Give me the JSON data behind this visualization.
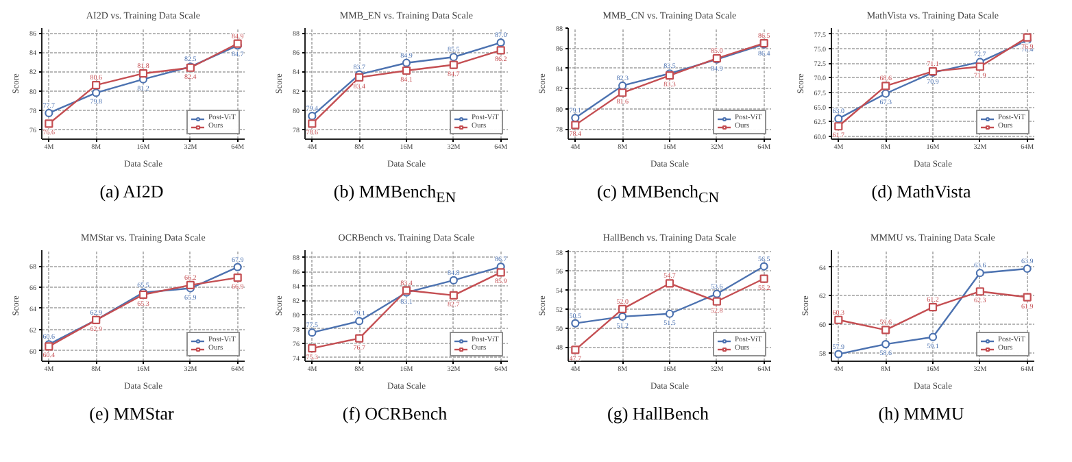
{
  "chart_data": [
    {
      "type": "line",
      "title": "AI2D vs. Training Data Scale",
      "xlabel": "Data Scale",
      "ylabel": "Score",
      "annotations": [
        "(a) AI2D"
      ],
      "categories": [
        "4M",
        "8M",
        "16M",
        "32M",
        "64M"
      ],
      "ylim": [
        75,
        86.5
      ],
      "yticks": [
        76,
        78,
        80,
        82,
        84,
        86
      ],
      "grid": true,
      "legend": "bottom right",
      "series": [
        {
          "name": "Post-ViT",
          "color": "#4c72b0",
          "marker": "circle",
          "values": [
            77.7,
            79.8,
            81.2,
            82.5,
            84.7
          ],
          "value_labels": [
            "77.7",
            "79.8",
            "81.2",
            "82.5",
            "84.7"
          ]
        },
        {
          "name": "Ours",
          "color": "#c44e52",
          "marker": "square",
          "values": [
            76.6,
            80.6,
            81.8,
            82.4,
            84.9
          ],
          "value_labels": [
            "76.6",
            "80.6",
            "81.8",
            "82.4",
            "84.9"
          ]
        }
      ]
    },
    {
      "type": "line",
      "title": "MMB_EN vs. Training Data Scale",
      "xlabel": "Data Scale",
      "ylabel": "Score",
      "annotations": [
        "(b) MMBench$_{EN}$"
      ],
      "categories": [
        "4M",
        "8M",
        "16M",
        "32M",
        "64M"
      ],
      "ylim": [
        77,
        88.5
      ],
      "yticks": [
        78,
        80,
        82,
        84,
        86,
        88
      ],
      "grid": true,
      "legend": "bottom right",
      "series": [
        {
          "name": "Post-ViT",
          "color": "#4c72b0",
          "marker": "circle",
          "values": [
            79.4,
            83.7,
            84.9,
            85.5,
            87.0
          ],
          "value_labels": [
            "79.4",
            "83.7",
            "84.9",
            "85.5",
            "87.0"
          ]
        },
        {
          "name": "Ours",
          "color": "#c44e52",
          "marker": "square",
          "values": [
            78.6,
            83.4,
            84.1,
            84.7,
            86.2
          ],
          "value_labels": [
            "78.6",
            "83.4",
            "84.1",
            "84.7",
            "86.2"
          ]
        }
      ]
    },
    {
      "type": "line",
      "title": "MMB_CN vs. Training Data Scale",
      "xlabel": "Data Scale",
      "ylabel": "Score",
      "annotations": [
        "(c) MMBench$_{CN}$"
      ],
      "categories": [
        "4M",
        "8M",
        "16M",
        "32M",
        "64M"
      ],
      "ylim": [
        77,
        88
      ],
      "yticks": [
        78,
        80,
        82,
        84,
        86,
        88
      ],
      "grid": true,
      "legend": "bottom right",
      "series": [
        {
          "name": "Post-ViT",
          "color": "#4c72b0",
          "marker": "circle",
          "values": [
            79.1,
            82.3,
            83.5,
            84.9,
            86.4
          ],
          "value_labels": [
            "79.1",
            "82.3",
            "83.5",
            "84.9",
            "86.4"
          ]
        },
        {
          "name": "Ours",
          "color": "#c44e52",
          "marker": "square",
          "values": [
            78.4,
            81.6,
            83.3,
            85.0,
            86.5
          ],
          "value_labels": [
            "78.4",
            "81.6",
            "83.3",
            "85.0",
            "86.5"
          ]
        }
      ]
    },
    {
      "type": "line",
      "title": "MathVista vs. Training Data Scale",
      "xlabel": "Data Scale",
      "ylabel": "Score",
      "annotations": [
        "(d) MathVista"
      ],
      "categories": [
        "4M",
        "8M",
        "16M",
        "32M",
        "64M"
      ],
      "ylim": [
        59.5,
        78.5
      ],
      "yticks": [
        {
          "value": 60,
          "label": "60.0"
        },
        62.5,
        {
          "value": 65,
          "label": "65.0"
        },
        67.5,
        {
          "value": 70,
          "label": "70.0"
        },
        72.5,
        {
          "value": 75,
          "label": "75.0"
        },
        77.5
      ],
      "grid": true,
      "legend": "bottom right",
      "series": [
        {
          "name": "Post-ViT",
          "color": "#4c72b0",
          "marker": "circle",
          "values": [
            63.0,
            67.3,
            70.9,
            72.7,
            76.4
          ],
          "value_labels": [
            "63.0",
            "67.3",
            "70.9",
            "72.7",
            "76.4"
          ]
        },
        {
          "name": "Ours",
          "color": "#c44e52",
          "marker": "square",
          "values": [
            61.7,
            68.6,
            71.1,
            71.9,
            76.9
          ],
          "value_labels": [
            "61.7",
            "68.6",
            "71.1",
            "71.9",
            "76.9"
          ]
        }
      ]
    },
    {
      "type": "line",
      "title": "MMStar vs. Training Data Scale",
      "xlabel": "Data Scale",
      "ylabel": "Score",
      "annotations": [
        "(e) MMStar"
      ],
      "categories": [
        "4M",
        "8M",
        "16M",
        "32M",
        "64M"
      ],
      "ylim": [
        59.0,
        69.5
      ],
      "yticks": [
        60,
        62,
        64,
        66,
        68
      ],
      "grid": true,
      "legend": "bottom right",
      "series": [
        {
          "name": "Post-ViT",
          "color": "#4c72b0",
          "marker": "circle",
          "values": [
            60.6,
            62.9,
            65.5,
            65.9,
            67.9
          ],
          "value_labels": [
            "60.6",
            "62.9",
            "65.5",
            "65.9",
            "67.9"
          ]
        },
        {
          "name": "Ours",
          "color": "#c44e52",
          "marker": "square",
          "values": [
            60.4,
            62.9,
            65.3,
            66.2,
            66.9
          ],
          "value_labels": [
            "60.4",
            "62.9",
            "65.3",
            "66.2",
            "66.9"
          ]
        }
      ]
    },
    {
      "type": "line",
      "title": "OCRBench vs. Training Data Scale",
      "xlabel": "Data Scale",
      "ylabel": "Score",
      "annotations": [
        "(f) OCRBench"
      ],
      "categories": [
        "4M",
        "8M",
        "16M",
        "32M",
        "64M"
      ],
      "ylim": [
        73.5,
        89
      ],
      "yticks": [
        74,
        76,
        78,
        80,
        82,
        84,
        86,
        88
      ],
      "grid": true,
      "legend": "bottom right",
      "series": [
        {
          "name": "Post-ViT",
          "color": "#4c72b0",
          "marker": "circle",
          "values": [
            77.5,
            79.1,
            83.1,
            84.8,
            86.7
          ],
          "value_labels": [
            "77.5",
            "79.1",
            "83.1",
            "84.8",
            "86.7"
          ]
        },
        {
          "name": "Ours",
          "color": "#c44e52",
          "marker": "square",
          "values": [
            75.3,
            76.7,
            83.4,
            82.7,
            85.9
          ],
          "value_labels": [
            "75.3",
            "76.7",
            "83.4",
            "82.7",
            "85.9"
          ]
        }
      ]
    },
    {
      "type": "line",
      "title": "HallBench vs. Training Data Scale",
      "xlabel": "Data Scale",
      "ylabel": "Score",
      "annotations": [
        "(g) HallBench"
      ],
      "categories": [
        "4M",
        "8M",
        "16M",
        "32M",
        "64M"
      ],
      "ylim": [
        46.5,
        58.2
      ],
      "yticks": [
        48,
        50,
        52,
        54,
        56,
        58
      ],
      "grid": true,
      "legend": "bottom right",
      "series": [
        {
          "name": "Post-ViT",
          "color": "#4c72b0",
          "marker": "circle",
          "values": [
            50.5,
            51.2,
            51.5,
            53.6,
            56.5
          ],
          "value_labels": [
            "50.5",
            "51.2",
            "51.5",
            "53.6",
            "56.5"
          ]
        },
        {
          "name": "Ours",
          "color": "#c44e52",
          "marker": "square",
          "values": [
            47.7,
            52.0,
            54.7,
            52.8,
            55.2
          ],
          "value_labels": [
            "47.7",
            "52.0",
            "54.7",
            "52.8",
            "55.2"
          ]
        }
      ]
    },
    {
      "type": "line",
      "title": "MMMU vs. Training Data Scale",
      "xlabel": "Data Scale",
      "ylabel": "Score",
      "annotations": [
        "(h) MMMU"
      ],
      "categories": [
        "4M",
        "8M",
        "16M",
        "32M",
        "64M"
      ],
      "ylim": [
        57.4,
        65.2
      ],
      "yticks": [
        58,
        60,
        62,
        64
      ],
      "grid": true,
      "legend": "bottom right",
      "series": [
        {
          "name": "Post-ViT",
          "color": "#4c72b0",
          "marker": "circle",
          "values": [
            57.9,
            58.6,
            59.1,
            63.6,
            63.9
          ],
          "value_labels": [
            "57.9",
            "58.6",
            "59.1",
            "63.6",
            "63.9"
          ]
        },
        {
          "name": "Ours",
          "color": "#c44e52",
          "marker": "square",
          "values": [
            60.3,
            59.6,
            61.2,
            62.3,
            61.9
          ],
          "value_labels": [
            "60.3",
            "59.6",
            "61.2",
            "62.3",
            "61.9"
          ]
        }
      ]
    }
  ]
}
